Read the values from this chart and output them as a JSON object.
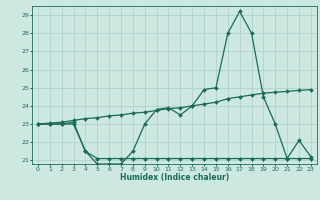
{
  "xlabel": "Humidex (Indice chaleur)",
  "x": [
    0,
    1,
    2,
    3,
    4,
    5,
    6,
    7,
    8,
    9,
    10,
    11,
    12,
    13,
    14,
    15,
    16,
    17,
    18,
    19,
    20,
    21,
    22,
    23
  ],
  "y_main": [
    23.0,
    23.0,
    23.0,
    23.1,
    21.5,
    20.8,
    20.8,
    20.8,
    21.5,
    23.0,
    23.8,
    23.9,
    23.5,
    24.0,
    24.9,
    25.0,
    28.0,
    29.2,
    28.0,
    24.5,
    23.0,
    21.1,
    22.1,
    21.2
  ],
  "y_trend": [
    23.0,
    23.05,
    23.1,
    23.2,
    23.3,
    23.35,
    23.45,
    23.5,
    23.6,
    23.65,
    23.75,
    23.85,
    23.9,
    24.0,
    24.1,
    24.2,
    24.4,
    24.5,
    24.6,
    24.7,
    24.75,
    24.8,
    24.85,
    24.9
  ],
  "y_flat": [
    23.0,
    23.0,
    23.0,
    23.0,
    21.5,
    21.1,
    21.1,
    21.1,
    21.1,
    21.1,
    21.1,
    21.1,
    21.1,
    21.1,
    21.1,
    21.1,
    21.1,
    21.1,
    21.1,
    21.1,
    21.1,
    21.1,
    21.1,
    21.1
  ],
  "ylim": [
    20.8,
    29.5
  ],
  "xlim": [
    -0.5,
    23.5
  ],
  "yticks": [
    21,
    22,
    23,
    24,
    25,
    26,
    27,
    28,
    29
  ],
  "xticks": [
    0,
    1,
    2,
    3,
    4,
    5,
    6,
    7,
    8,
    9,
    10,
    11,
    12,
    13,
    14,
    15,
    16,
    17,
    18,
    19,
    20,
    21,
    22,
    23
  ],
  "line_color": "#1a6b5a",
  "bg_color": "#cce8e0",
  "grid_color": "#aacfc8"
}
